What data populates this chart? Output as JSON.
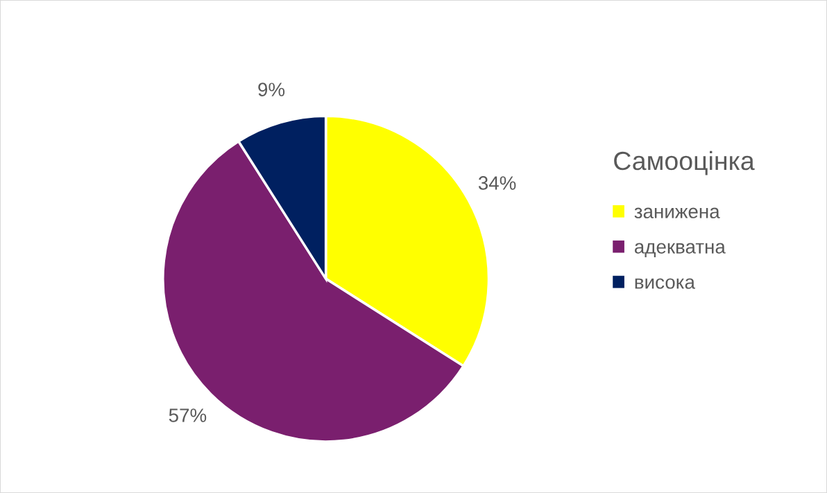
{
  "chart_data": {
    "type": "pie",
    "legend_title": "Самооцінка",
    "legend": "right",
    "categories": [
      "занижена",
      "адекватна",
      "висока"
    ],
    "values": [
      34,
      57,
      9
    ],
    "colors": [
      "#ffff00",
      "#7a1f6e",
      "#002060"
    ],
    "value_labels": [
      "34%",
      "57%",
      "9%"
    ]
  }
}
